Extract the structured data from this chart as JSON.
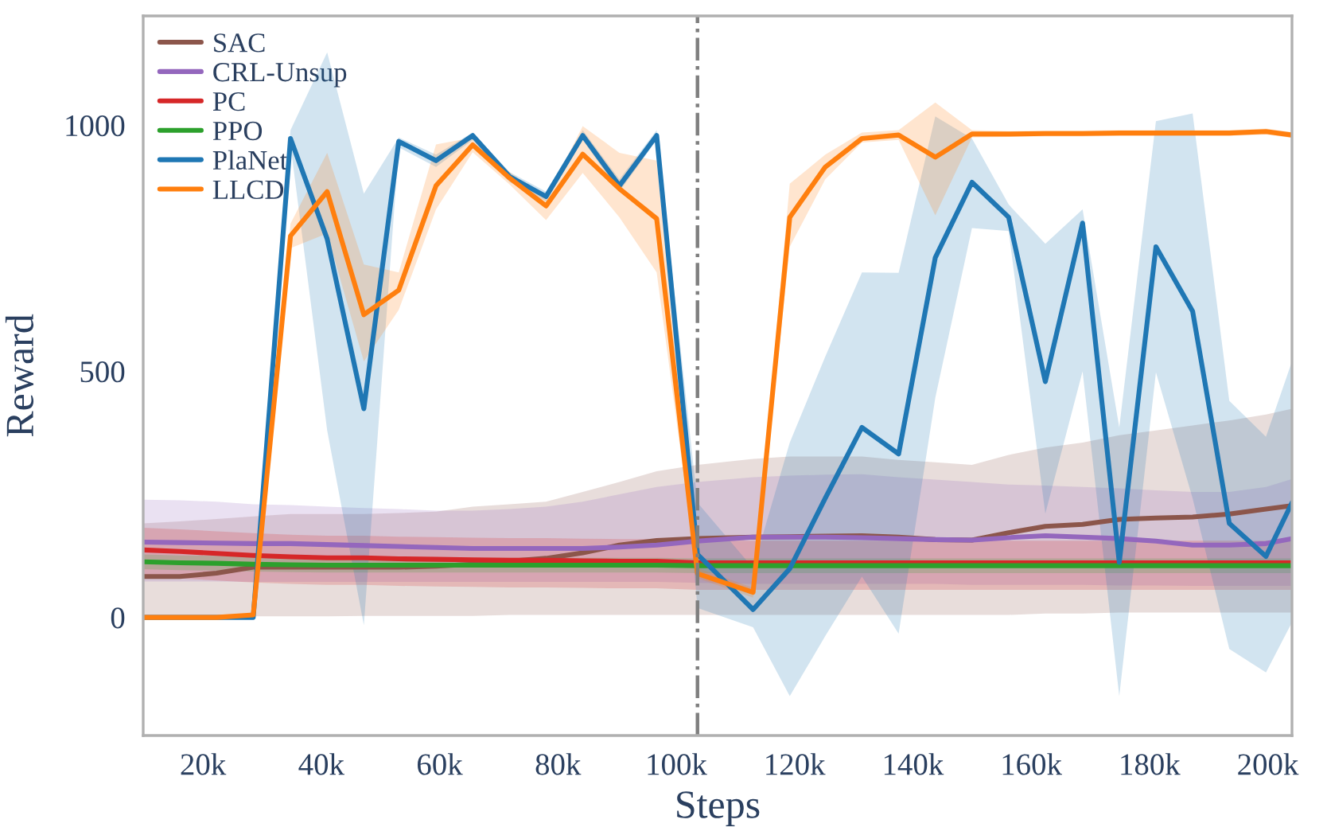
{
  "chart_data": {
    "type": "line",
    "xlabel": "Steps",
    "ylabel": "Reward",
    "x": [
      9900,
      16100,
      22300,
      28500,
      34800,
      41000,
      47200,
      53100,
      59400,
      65600,
      71800,
      78000,
      84200,
      90400,
      96700,
      103600,
      113000,
      119200,
      125200,
      131400,
      137600,
      143800,
      150000,
      156200,
      162400,
      168700,
      174900,
      181100,
      187300,
      193500,
      199700,
      204100
    ],
    "xlim": [
      9900,
      204100
    ],
    "ylim": [
      -240,
      1222
    ],
    "xticks": [
      {
        "value": 20000,
        "label": "20k"
      },
      {
        "value": 40000,
        "label": "40k"
      },
      {
        "value": 60000,
        "label": "60k"
      },
      {
        "value": 80000,
        "label": "80k"
      },
      {
        "value": 100000,
        "label": "100k"
      },
      {
        "value": 120000,
        "label": "120k"
      },
      {
        "value": 140000,
        "label": "140k"
      },
      {
        "value": 160000,
        "label": "160k"
      },
      {
        "value": 180000,
        "label": "180k"
      },
      {
        "value": 200000,
        "label": "200k"
      }
    ],
    "yticks": [
      0,
      500,
      1000
    ],
    "grid": false,
    "legend": "top left",
    "ref_lines": [
      {
        "axis": "x",
        "value": 103600,
        "color": "#7f7f7f",
        "line_style": "dashdot"
      }
    ],
    "series": [
      {
        "name": "SAC",
        "color": "#8c564b",
        "values": [
          83,
          83,
          90,
          102,
          102,
          102,
          102,
          102,
          104,
          108,
          114,
          120,
          131,
          147,
          156,
          160,
          163,
          164,
          165,
          166,
          163,
          158,
          157,
          172,
          185,
          189,
          199,
          202,
          204,
          210,
          220,
          227
        ],
        "lower": [
          0,
          0,
          0,
          2,
          2,
          2,
          3,
          3,
          3,
          3,
          5,
          5,
          5,
          5,
          5,
          5,
          5,
          5,
          5,
          5,
          5,
          5,
          5,
          5,
          8,
          8,
          10,
          10,
          10,
          10,
          10,
          10
        ],
        "upper": [
          191,
          195,
          200,
          205,
          210,
          210,
          210,
          212,
          215,
          225,
          230,
          235,
          255,
          275,
          297,
          310,
          322,
          327,
          327,
          327,
          320,
          315,
          310,
          330,
          345,
          355,
          370,
          380,
          390,
          400,
          412,
          424
        ]
      },
      {
        "name": "CRL-Unsup",
        "color": "#9467bd",
        "values": [
          153,
          152,
          151,
          150,
          150,
          148,
          146,
          144,
          142,
          140,
          140,
          140,
          140,
          143,
          147,
          155,
          163,
          163,
          163,
          162,
          160,
          158,
          157,
          162,
          166,
          163,
          160,
          155,
          147,
          147,
          150,
          160
        ],
        "lower": [
          73,
          73,
          73,
          72,
          72,
          72,
          72,
          72,
          72,
          72,
          72,
          72,
          72,
          72,
          72,
          70,
          68,
          68,
          68,
          68,
          68,
          68,
          66,
          66,
          66,
          66,
          65,
          65,
          64,
          64,
          64,
          64
        ],
        "upper": [
          239,
          238,
          235,
          230,
          228,
          225,
          222,
          220,
          217,
          217,
          220,
          225,
          235,
          250,
          265,
          275,
          285,
          288,
          290,
          291,
          285,
          280,
          275,
          270,
          268,
          265,
          262,
          258,
          255,
          255,
          265,
          281
        ]
      },
      {
        "name": "PC",
        "color": "#d62728",
        "values": [
          137,
          134,
          130,
          126,
          123,
          121,
          121,
          119,
          118,
          117,
          116,
          116,
          115,
          114,
          114,
          111,
          111,
          111,
          111,
          111,
          111,
          111,
          111,
          111,
          111,
          111,
          111,
          111,
          111,
          111,
          111,
          111
        ],
        "lower": [
          82,
          79,
          75,
          71,
          68,
          66,
          66,
          64,
          63,
          62,
          61,
          61,
          60,
          59,
          59,
          56,
          56,
          56,
          56,
          56,
          56,
          56,
          56,
          56,
          56,
          56,
          56,
          56,
          56,
          56,
          56,
          56
        ],
        "upper": [
          182,
          179,
          175,
          171,
          168,
          166,
          166,
          164,
          163,
          162,
          161,
          161,
          160,
          159,
          159,
          156,
          156,
          156,
          156,
          156,
          156,
          156,
          156,
          156,
          156,
          156,
          156,
          156,
          156,
          156,
          156,
          156
        ]
      },
      {
        "name": "PPO",
        "color": "#2ca02c",
        "values": [
          113,
          111,
          110,
          108,
          107,
          106,
          106,
          106,
          106,
          106,
          106,
          106,
          106,
          106,
          106,
          105,
          105,
          105,
          105,
          105,
          105,
          105,
          105,
          105,
          105,
          105,
          105,
          105,
          105,
          105,
          105,
          105
        ],
        "lower": [
          98,
          96,
          95,
          93,
          92,
          91,
          91,
          91,
          91,
          91,
          91,
          91,
          91,
          91,
          91,
          90,
          90,
          90,
          90,
          90,
          90,
          90,
          90,
          90,
          90,
          90,
          90,
          90,
          90,
          90,
          90,
          90
        ],
        "upper": [
          128,
          126,
          125,
          123,
          122,
          121,
          121,
          121,
          121,
          121,
          121,
          121,
          121,
          121,
          121,
          120,
          120,
          120,
          120,
          120,
          120,
          120,
          120,
          120,
          120,
          120,
          120,
          120,
          120,
          120,
          120,
          120
        ]
      },
      {
        "name": "PlaNet",
        "color": "#1f77b4",
        "values": [
          0,
          0,
          0,
          0,
          973,
          769,
          424,
          967,
          928,
          979,
          896,
          855,
          979,
          877,
          979,
          128,
          16,
          99,
          242,
          386,
          332,
          731,
          884,
          813,
          479,
          801,
          112,
          753,
          622,
          191,
          124,
          233
        ],
        "lower": [
          -3,
          -3,
          -3,
          -3,
          960,
          380,
          -16,
          955,
          915,
          970,
          885,
          845,
          970,
          865,
          970,
          19,
          -20,
          -160,
          -38,
          83,
          -33,
          446,
          791,
          785,
          211,
          500,
          -160,
          498,
          242,
          -64,
          -112,
          -10
        ],
        "upper": [
          3,
          3,
          3,
          3,
          990,
          1148,
          861,
          975,
          940,
          985,
          905,
          865,
          990,
          890,
          990,
          233,
          100,
          355,
          530,
          701,
          700,
          1018,
          973,
          839,
          759,
          829,
          386,
          1008,
          1024,
          440,
          367,
          520
        ]
      },
      {
        "name": "LLCD",
        "color": "#ff7f0e",
        "values": [
          0,
          0,
          0,
          5,
          775,
          865,
          615,
          665,
          877,
          960,
          893,
          836,
          941,
          871,
          810,
          89,
          51,
          813,
          915,
          973,
          980,
          935,
          982,
          982,
          983,
          983,
          984,
          984,
          984,
          984,
          987,
          980
        ],
        "lower": [
          -3,
          -3,
          -3,
          2,
          750,
          780,
          520,
          625,
          829,
          945,
          880,
          807,
          903,
          813,
          701,
          80,
          40,
          753,
          890,
          965,
          970,
          817,
          975,
          976,
          977,
          977,
          978,
          978,
          978,
          978,
          981,
          974
        ],
        "upper": [
          3,
          3,
          3,
          8,
          800,
          944,
          717,
          701,
          961,
          975,
          905,
          850,
          998,
          944,
          928,
          100,
          60,
          881,
          940,
          985,
          990,
          1046,
          990,
          988,
          989,
          989,
          990,
          990,
          990,
          990,
          993,
          986
        ]
      }
    ]
  }
}
